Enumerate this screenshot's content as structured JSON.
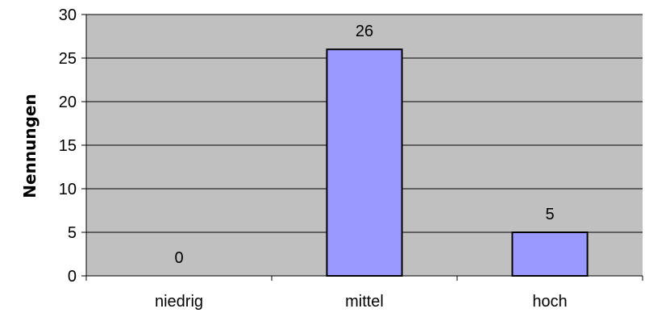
{
  "chart_data": {
    "type": "bar",
    "title": "",
    "xlabel": "",
    "ylabel": "Nennungen",
    "categories": [
      "niedrig",
      "mittel",
      "hoch"
    ],
    "values": [
      0,
      26,
      5
    ],
    "data_labels": [
      "0",
      "26",
      "5"
    ],
    "ylim": [
      0,
      30
    ],
    "yticks": [
      0,
      5,
      10,
      15,
      20,
      25,
      30
    ],
    "ytick_labels": [
      "0",
      "5",
      "10",
      "15",
      "20",
      "25",
      "30"
    ],
    "grid": true,
    "legend": "none"
  },
  "colors": {
    "plot_background": "#c0c0c0",
    "bar_fill": "#9999ff",
    "bar_stroke": "#000000",
    "gridline": "#000000",
    "axis": "#000000"
  }
}
